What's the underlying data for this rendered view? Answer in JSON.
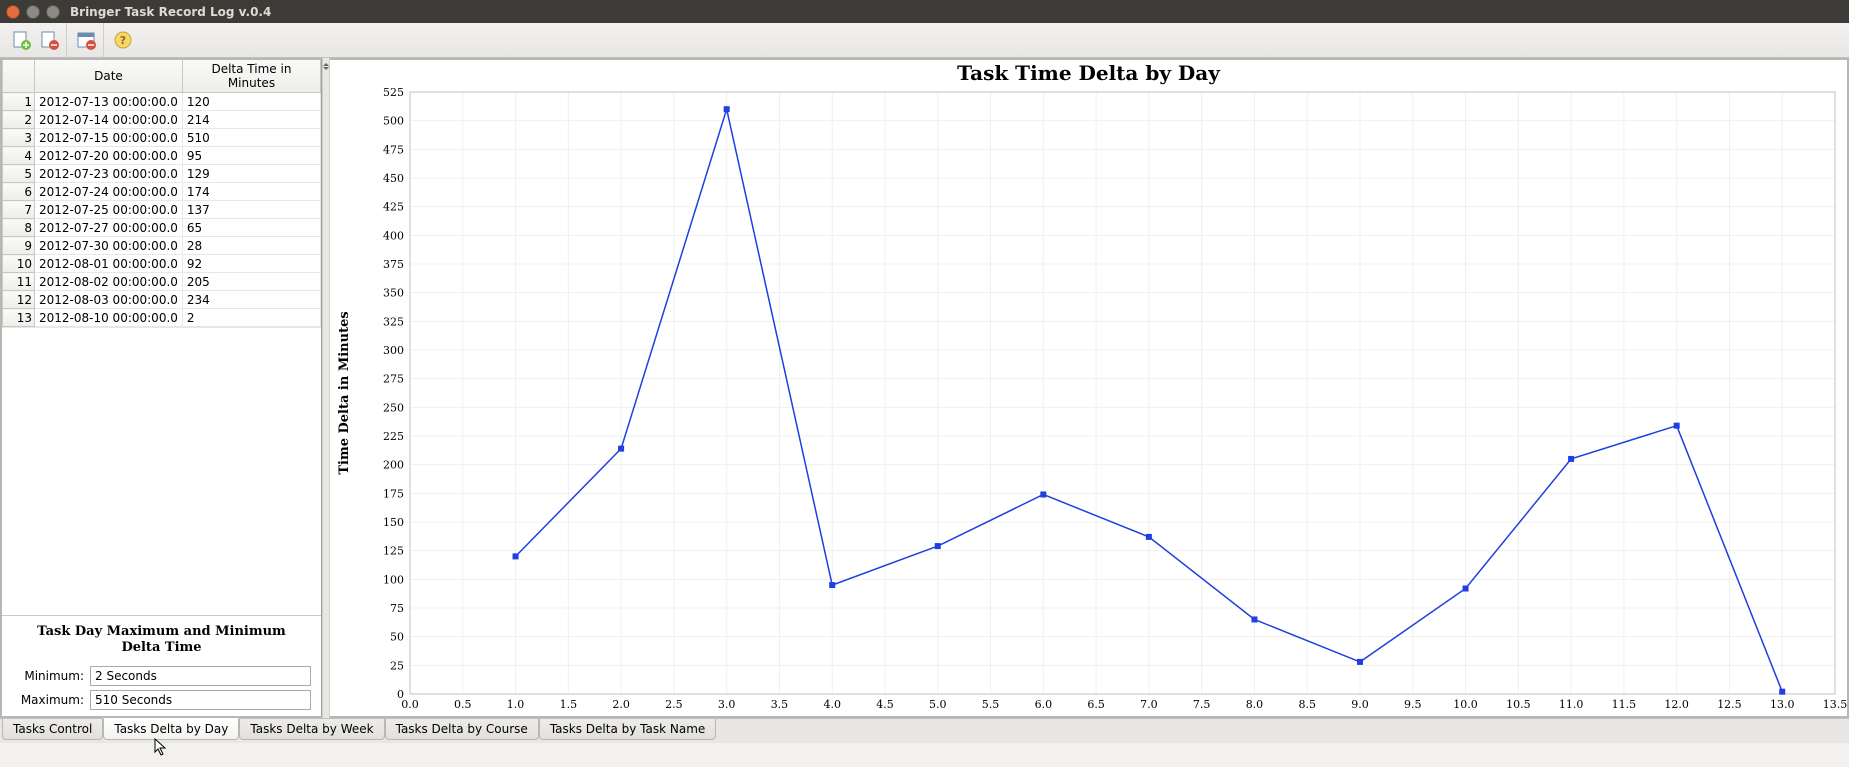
{
  "window": {
    "title": "Bringer Task Record Log v.0.4"
  },
  "toolbar": {
    "buttons": [
      {
        "name": "new-doc-icon"
      },
      {
        "name": "delete-doc-icon"
      },
      {
        "name": "calendar-icon"
      },
      {
        "name": "help-icon"
      }
    ]
  },
  "table": {
    "columns": [
      "Date",
      "Delta Time in Minutes"
    ],
    "rows": [
      {
        "n": "1",
        "date": "2012-07-13 00:00:00.0",
        "delta": "120"
      },
      {
        "n": "2",
        "date": "2012-07-14 00:00:00.0",
        "delta": "214"
      },
      {
        "n": "3",
        "date": "2012-07-15 00:00:00.0",
        "delta": "510"
      },
      {
        "n": "4",
        "date": "2012-07-20 00:00:00.0",
        "delta": "95"
      },
      {
        "n": "5",
        "date": "2012-07-23 00:00:00.0",
        "delta": "129"
      },
      {
        "n": "6",
        "date": "2012-07-24 00:00:00.0",
        "delta": "174"
      },
      {
        "n": "7",
        "date": "2012-07-25 00:00:00.0",
        "delta": "137"
      },
      {
        "n": "8",
        "date": "2012-07-27 00:00:00.0",
        "delta": "65"
      },
      {
        "n": "9",
        "date": "2012-07-30 00:00:00.0",
        "delta": "28"
      },
      {
        "n": "10",
        "date": "2012-08-01 00:00:00.0",
        "delta": "92"
      },
      {
        "n": "11",
        "date": "2012-08-02 00:00:00.0",
        "delta": "205"
      },
      {
        "n": "12",
        "date": "2012-08-03 00:00:00.0",
        "delta": "234"
      },
      {
        "n": "13",
        "date": "2012-08-10 00:00:00.0",
        "delta": "2"
      }
    ]
  },
  "stats": {
    "title": "Task Day Maximum and Minimum Delta Time",
    "min_label": "Minimum:",
    "max_label": "Maximum:",
    "min_value": "2 Seconds",
    "max_value": "510 Seconds"
  },
  "chart": {
    "type": "line",
    "title": "Task Time Delta by Day",
    "ylabel": "Time Delta in Minutes",
    "x": [
      1,
      2,
      3,
      4,
      5,
      6,
      7,
      8,
      9,
      10,
      11,
      12,
      13
    ],
    "y": [
      120,
      214,
      510,
      95,
      129,
      174,
      137,
      65,
      28,
      92,
      205,
      234,
      2
    ],
    "xlim": [
      0.0,
      13.5
    ],
    "ylim": [
      0,
      525
    ],
    "xtick_step": 0.5,
    "ytick_step": 25,
    "line_color": "#1f3fe0",
    "marker_color": "#1f3fe0",
    "marker_size": 6,
    "line_width": 1.5,
    "background_color": "#ffffff",
    "grid_color": "#f0f0f0",
    "axis_color": "#c0c0c0",
    "tick_font_size": 11,
    "tick_font_family": "Georgia, 'DejaVu Serif', serif",
    "title_fontsize": 20,
    "ylabel_fontsize": 13
  },
  "tabs": {
    "items": [
      {
        "label": "Tasks Control",
        "active": false
      },
      {
        "label": "Tasks Delta by Day",
        "active": true
      },
      {
        "label": "Tasks Delta by Week",
        "active": false
      },
      {
        "label": "Tasks Delta by Course",
        "active": false
      },
      {
        "label": "Tasks Delta by Task Name",
        "active": false
      }
    ]
  }
}
